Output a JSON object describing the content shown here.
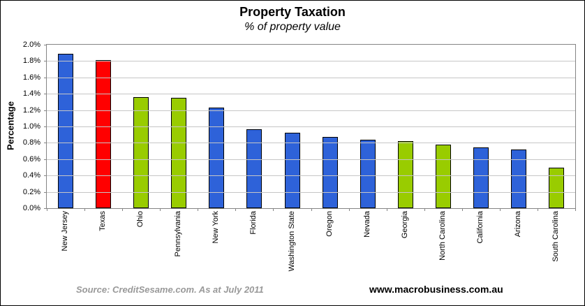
{
  "chart_data": {
    "type": "bar",
    "title": "Property Taxation",
    "subtitle": "% of property value",
    "ylabel": "Percentage",
    "xlabel": "",
    "ylim": [
      0,
      2.0
    ],
    "ytick_step": 0.2,
    "ytick_suffix": "%",
    "grid": true,
    "legend_position": "none",
    "categories": [
      "New Jersey",
      "Texas",
      "Ohio",
      "Pennsylvania",
      "New York",
      "Florida",
      "Washington State",
      "Oregon",
      "Nevada",
      "Georgia",
      "North Carolina",
      "California",
      "Arizona",
      "South Carolina"
    ],
    "values": [
      1.89,
      1.81,
      1.36,
      1.35,
      1.23,
      0.97,
      0.92,
      0.87,
      0.84,
      0.82,
      0.78,
      0.74,
      0.72,
      0.5
    ],
    "bar_colors": [
      "blue",
      "red",
      "green",
      "green",
      "blue",
      "blue",
      "blue",
      "blue",
      "blue",
      "green",
      "green",
      "blue",
      "blue",
      "green"
    ],
    "palette": {
      "blue": "#2e62d9",
      "red": "#ff0000",
      "green": "#99cc00"
    }
  },
  "footer": {
    "source": "Source: CreditSesame.com.  As at July 2011",
    "site": "www.macrobusiness.com.au"
  }
}
